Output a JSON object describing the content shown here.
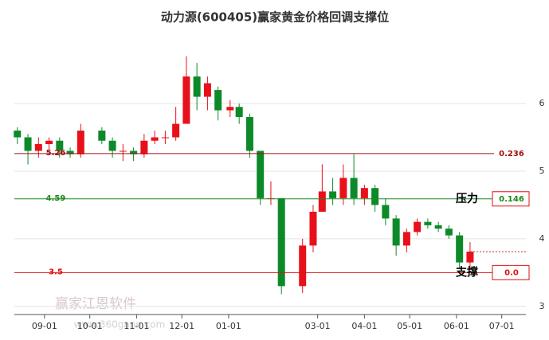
{
  "chart_data": {
    "type": "candlestick",
    "title": "动力源(600405)赢家黄金价格回调支撑位",
    "watermark": "赢家江恩软件",
    "watermark_url": "www.360gann.com",
    "dates": [
      "08-14",
      "08-21",
      "08-28",
      "09-04",
      "09-11",
      "09-18",
      "09-25",
      "10-09",
      "10-16",
      "10-23",
      "10-30",
      "11-06",
      "11-13",
      "11-20",
      "11-27",
      "12-04",
      "12-11",
      "12-18",
      "12-25",
      "01-02",
      "01-08",
      "01-15",
      "01-22",
      "01-29",
      "02-05",
      "02-19",
      "02-26",
      "03-04",
      "03-11",
      "03-18",
      "03-25",
      "04-01",
      "04-08",
      "04-15",
      "04-22",
      "04-29",
      "05-06",
      "05-13",
      "05-20",
      "05-27",
      "06-03",
      "06-10"
    ],
    "open": [
      5.6,
      5.5,
      5.3,
      5.4,
      5.45,
      5.3,
      5.25,
      5.6,
      5.45,
      5.3,
      5.3,
      5.25,
      5.45,
      5.5,
      5.5,
      5.7,
      6.4,
      6.1,
      6.2,
      5.9,
      5.95,
      5.8,
      5.3,
      4.6,
      4.6,
      3.3,
      3.9,
      4.4,
      4.7,
      4.6,
      4.9,
      4.6,
      4.75,
      4.5,
      4.3,
      3.9,
      4.1,
      4.25,
      4.2,
      4.15,
      4.05,
      3.65
    ],
    "close": [
      5.5,
      5.3,
      5.4,
      5.45,
      5.3,
      5.25,
      5.6,
      5.45,
      5.3,
      5.3,
      5.25,
      5.45,
      5.5,
      5.5,
      5.7,
      6.4,
      6.1,
      6.3,
      5.9,
      5.95,
      5.8,
      5.3,
      4.6,
      4.6,
      3.3,
      3.9,
      4.4,
      4.7,
      4.6,
      4.9,
      4.6,
      4.75,
      4.5,
      4.3,
      3.9,
      4.1,
      4.25,
      4.2,
      4.15,
      4.05,
      3.65,
      3.81
    ],
    "low": [
      5.4,
      5.1,
      5.2,
      5.3,
      5.2,
      5.2,
      5.2,
      5.4,
      5.2,
      5.15,
      5.15,
      5.2,
      5.4,
      5.4,
      5.45,
      5.7,
      5.9,
      5.9,
      5.75,
      5.8,
      5.7,
      5.2,
      4.5,
      4.5,
      3.18,
      3.2,
      3.8,
      4.4,
      4.5,
      4.5,
      4.5,
      4.5,
      4.4,
      4.2,
      3.75,
      3.8,
      4.05,
      4.15,
      4.1,
      4.0,
      3.55,
      3.55
    ],
    "high": [
      5.65,
      5.55,
      5.5,
      5.5,
      5.5,
      5.35,
      5.7,
      5.65,
      5.5,
      5.4,
      5.35,
      5.55,
      5.6,
      5.6,
      5.95,
      6.7,
      6.6,
      6.4,
      6.25,
      6.05,
      6.0,
      5.85,
      5.3,
      4.85,
      4.6,
      4.0,
      4.5,
      5.1,
      4.9,
      5.1,
      5.25,
      4.8,
      4.8,
      4.6,
      4.35,
      4.15,
      4.3,
      4.3,
      4.25,
      4.2,
      4.1,
      3.95
    ],
    "up_color": "#e8101a",
    "down_color": "#0c8a2a",
    "xlim": [
      "08-12",
      "07-17"
    ],
    "xticks": [
      "09-01",
      "10-01",
      "11-01",
      "12-01",
      "01-01",
      "03-01",
      "04-01",
      "05-01",
      "06-01",
      "07-01"
    ],
    "ylim": [
      2.88,
      7.06
    ],
    "yticks": [
      3,
      4,
      5,
      6
    ],
    "grid": true,
    "levels": [
      {
        "value": 5.26,
        "label": "0.236",
        "color": "#a01010",
        "boxed": false
      },
      {
        "value": 4.59,
        "label": "0.146",
        "color": "#1a8a1a",
        "boxed": true,
        "note": "压力"
      },
      {
        "value": 3.5,
        "label": "0.0",
        "color": "#e01010",
        "boxed": true,
        "note": "支撑"
      }
    ]
  }
}
